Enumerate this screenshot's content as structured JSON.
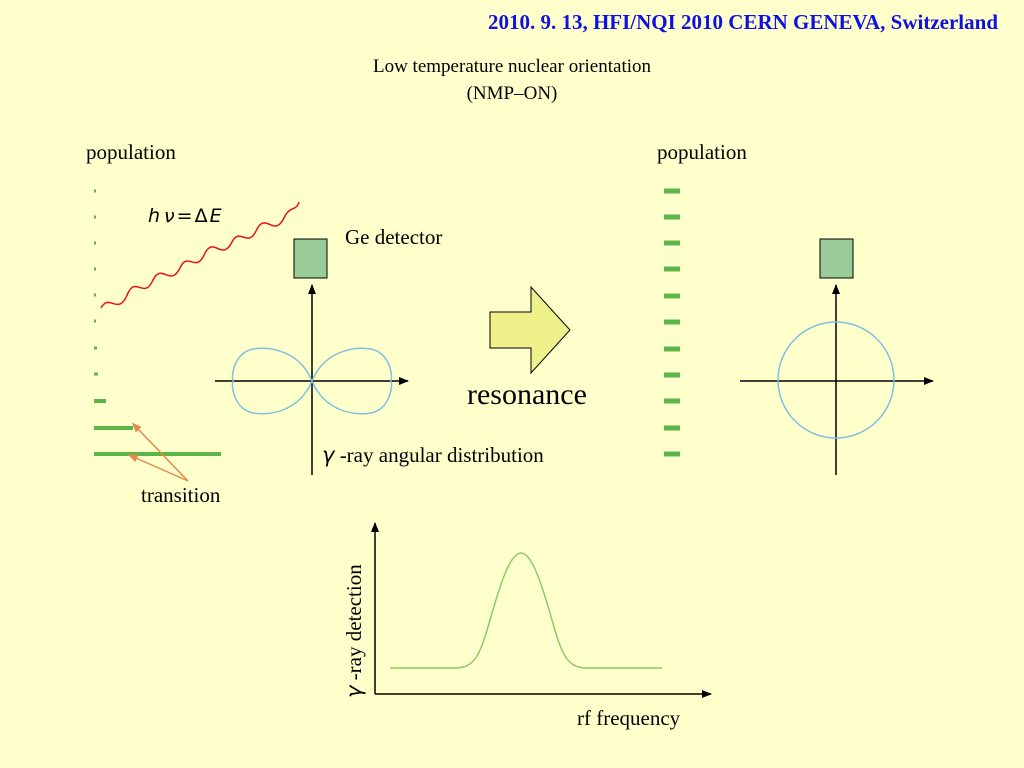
{
  "header": "2010. 9. 13, HFI/NQI 2010 CERN GENEVA, Switzerland",
  "title": {
    "line1": "Low temperature nuclear orientation",
    "line2": "(NMP–ON)"
  },
  "left": {
    "population_label": "population",
    "photon_h": "h",
    "photon_nu": "ν",
    "photon_eq": "=",
    "photon_delta": "Δ",
    "photon_E": "E",
    "detector_label": "Ge detector",
    "gamma_symbol": "γ",
    "angular_label": "-ray angular distribution",
    "transition_label": "transition"
  },
  "arrow_label": "resonance",
  "right": {
    "population_label": "population"
  },
  "spectrum": {
    "gamma_symbol": "γ",
    "ylabel": "-ray detection",
    "xlabel": "rf frequency"
  },
  "colors": {
    "header": "#1010e0",
    "level": "#5cb548",
    "detector": "#99cc99",
    "pattern": "#7fbfdf",
    "photon": "#ee1111",
    "pointer": "#e38a4a",
    "arrow_fill": "#eef08a",
    "peak": "#88cc66",
    "background": "#ffffcc"
  }
}
